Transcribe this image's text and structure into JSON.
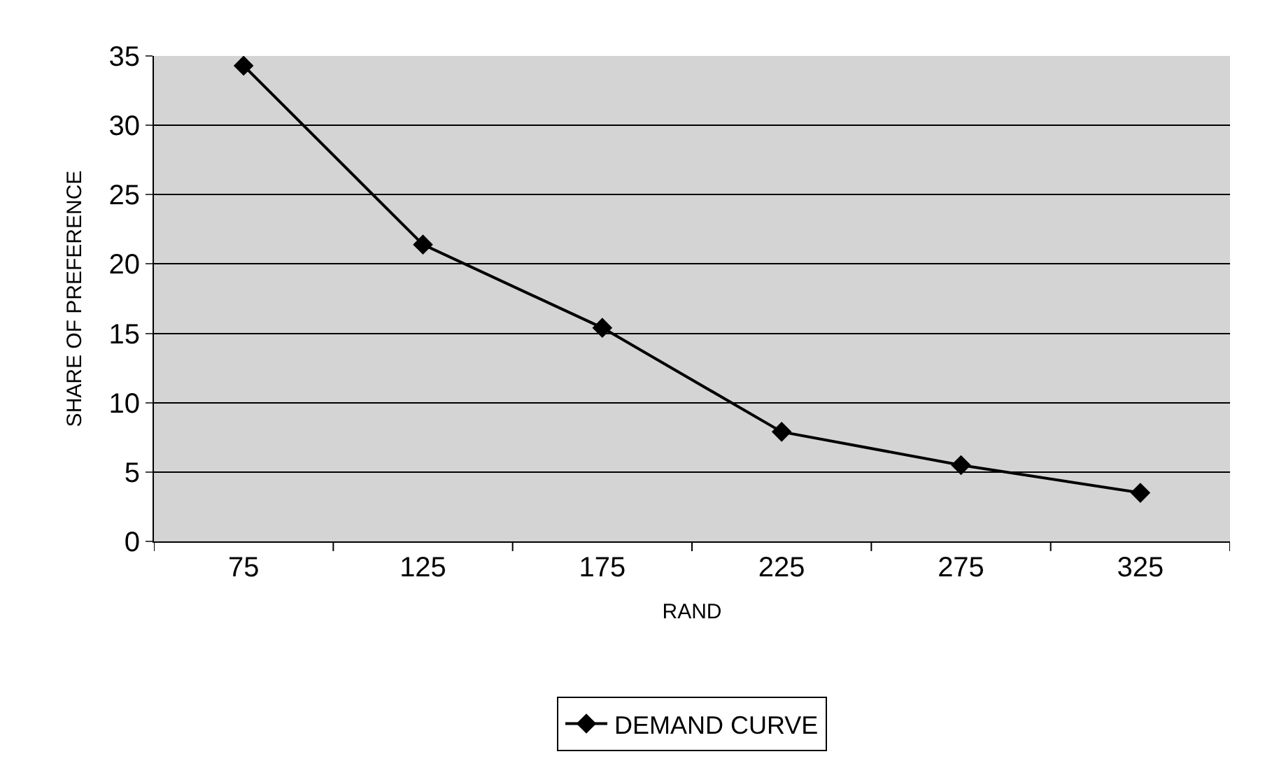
{
  "chart_data": {
    "type": "line",
    "xlabel": "RAND",
    "ylabel": "SHARE OF PREFERENCE",
    "categories": [
      "75",
      "125",
      "175",
      "225",
      "275",
      "325"
    ],
    "series": [
      {
        "name": "DEMAND CURVE",
        "color": "#000000",
        "values": [
          34.3,
          21.4,
          15.4,
          7.9,
          5.5,
          3.5
        ]
      }
    ],
    "ylim": [
      0,
      35
    ],
    "yticks": [
      0,
      5,
      10,
      15,
      20,
      25,
      30,
      35
    ],
    "grid": "y",
    "legend": "bottom",
    "marker": "diamond",
    "line_style": "solid"
  }
}
